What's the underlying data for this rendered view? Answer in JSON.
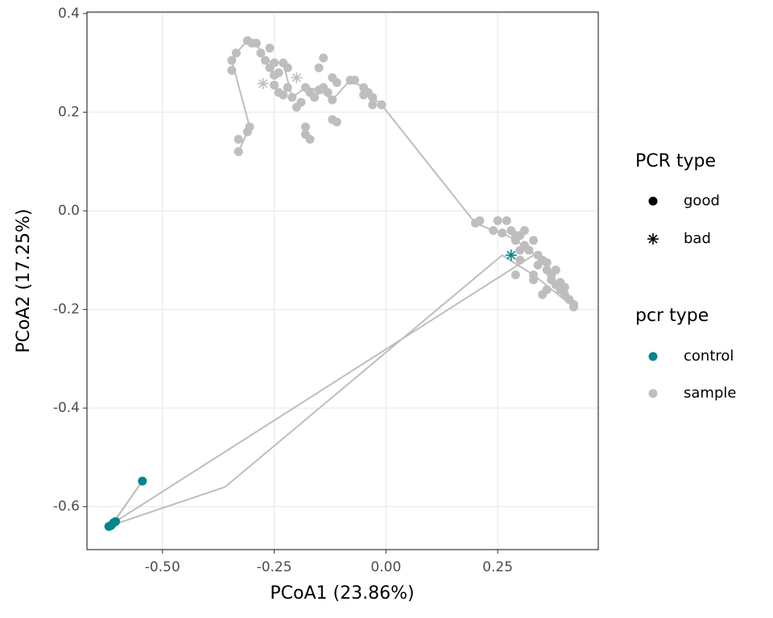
{
  "chart_data": {
    "type": "scatter",
    "x_label": "PCoA1 (23.86%)",
    "y_label": "PCoA2 (17.25%)",
    "xlim": [
      -0.669,
      0.475
    ],
    "xticks": [
      {
        "value": -0.5,
        "label": "-0.50"
      },
      {
        "value": -0.25,
        "label": "-0.25"
      },
      {
        "value": 0,
        "label": "0.00"
      },
      {
        "value": 0.25,
        "label": "0.25"
      }
    ],
    "ylim": [
      -0.687,
      0.403
    ],
    "yticks": [
      0.4,
      0.2,
      {
        "value": 0,
        "label": "0.0"
      },
      -0.2,
      -0.4,
      -0.6
    ],
    "grid": true,
    "shape_legend": {
      "title": "PCR type",
      "labels": [
        "good",
        "bad"
      ]
    },
    "color_legend_title": "pcr type",
    "path": {
      "color": "#BEBEBE",
      "x": [
        -0.33,
        -0.31,
        -0.305,
        -0.345,
        -0.335,
        -0.31,
        -0.29,
        -0.27,
        -0.25,
        -0.23,
        -0.21,
        -0.18,
        -0.15,
        -0.12,
        -0.08,
        -0.05,
        -0.03,
        -0.01,
        0.2,
        0.24,
        0.26,
        0.29,
        0.32,
        0.35,
        0.38,
        0.42,
        0.33,
        0.26,
        -0.36,
        -0.615,
        -0.545,
        -0.61,
        0.33
      ],
      "y": [
        0.12,
        0.16,
        0.17,
        0.305,
        0.32,
        0.345,
        0.34,
        0.305,
        0.3,
        0.3,
        0.23,
        0.25,
        0.245,
        0.225,
        0.265,
        0.25,
        0.23,
        0.215,
        -0.025,
        -0.04,
        -0.045,
        -0.06,
        -0.08,
        -0.1,
        -0.15,
        -0.195,
        -0.13,
        -0.09,
        -0.56,
        -0.638,
        -0.548,
        -0.633,
        -0.09
      ]
    },
    "series": [
      {
        "name": "control",
        "color": "#00868B",
        "x": [
          -0.545,
          -0.615,
          -0.61,
          -0.62,
          -0.605,
          0.28
        ],
        "y": [
          -0.548,
          -0.638,
          -0.633,
          -0.64,
          -0.63,
          -0.09
        ],
        "shape": [
          0,
          0,
          0,
          0,
          0,
          1
        ]
      },
      {
        "name": "sample",
        "color": "#BEBEBE",
        "x": [
          -0.33,
          -0.33,
          -0.31,
          -0.305,
          -0.345,
          -0.345,
          -0.335,
          -0.31,
          -0.3,
          -0.29,
          -0.28,
          -0.27,
          -0.26,
          -0.25,
          -0.24,
          -0.23,
          -0.22,
          -0.25,
          -0.24,
          -0.22,
          -0.21,
          -0.2,
          -0.19,
          -0.18,
          -0.17,
          -0.16,
          -0.15,
          -0.14,
          -0.13,
          -0.12,
          -0.15,
          -0.14,
          -0.12,
          -0.11,
          -0.08,
          -0.07,
          -0.05,
          -0.04,
          -0.03,
          -0.01,
          -0.03,
          -0.05,
          -0.18,
          -0.18,
          -0.17,
          -0.12,
          -0.11,
          -0.23,
          -0.25,
          -0.26,
          -0.275,
          -0.2,
          0.2,
          0.21,
          0.24,
          0.26,
          0.25,
          0.27,
          0.28,
          0.29,
          0.3,
          0.31,
          0.32,
          0.33,
          0.34,
          0.35,
          0.36,
          0.37,
          0.38,
          0.39,
          0.4,
          0.41,
          0.42,
          0.42,
          0.36,
          0.35,
          0.37,
          0.34,
          0.33,
          0.3,
          0.29,
          0.31,
          0.3,
          0.38,
          0.39,
          0.36,
          0.4,
          0.33,
          0.29
        ],
        "y": [
          0.12,
          0.145,
          0.16,
          0.17,
          0.305,
          0.285,
          0.32,
          0.345,
          0.34,
          0.34,
          0.32,
          0.305,
          0.33,
          0.3,
          0.28,
          0.3,
          0.29,
          0.255,
          0.24,
          0.25,
          0.23,
          0.21,
          0.22,
          0.25,
          0.24,
          0.23,
          0.245,
          0.25,
          0.24,
          0.225,
          0.29,
          0.31,
          0.27,
          0.26,
          0.265,
          0.265,
          0.25,
          0.24,
          0.23,
          0.215,
          0.215,
          0.235,
          0.17,
          0.155,
          0.145,
          0.185,
          0.18,
          0.235,
          0.275,
          0.29,
          0.258,
          0.27,
          -0.025,
          -0.02,
          -0.04,
          -0.045,
          -0.02,
          -0.02,
          -0.04,
          -0.06,
          -0.05,
          -0.07,
          -0.08,
          -0.06,
          -0.09,
          -0.1,
          -0.12,
          -0.14,
          -0.15,
          -0.16,
          -0.17,
          -0.18,
          -0.195,
          -0.19,
          -0.16,
          -0.17,
          -0.13,
          -0.11,
          -0.13,
          -0.1,
          -0.13,
          -0.04,
          -0.08,
          -0.12,
          -0.145,
          -0.105,
          -0.155,
          -0.14,
          -0.05
        ],
        "shape": [
          0,
          0,
          0,
          0,
          0,
          0,
          0,
          0,
          0,
          0,
          0,
          0,
          0,
          0,
          0,
          0,
          0,
          0,
          0,
          0,
          0,
          0,
          0,
          0,
          0,
          0,
          0,
          0,
          0,
          0,
          0,
          0,
          0,
          0,
          0,
          0,
          0,
          0,
          0,
          0,
          0,
          0,
          0,
          0,
          0,
          0,
          0,
          0,
          0,
          0,
          1,
          1,
          0,
          0,
          0,
          0,
          0,
          0,
          0,
          0,
          0,
          0,
          0,
          0,
          0,
          0,
          0,
          0,
          0,
          0,
          0,
          0,
          0,
          0,
          0,
          0,
          0,
          0,
          0,
          0,
          0,
          0,
          0,
          0,
          0,
          0,
          0,
          0,
          0
        ]
      }
    ]
  }
}
